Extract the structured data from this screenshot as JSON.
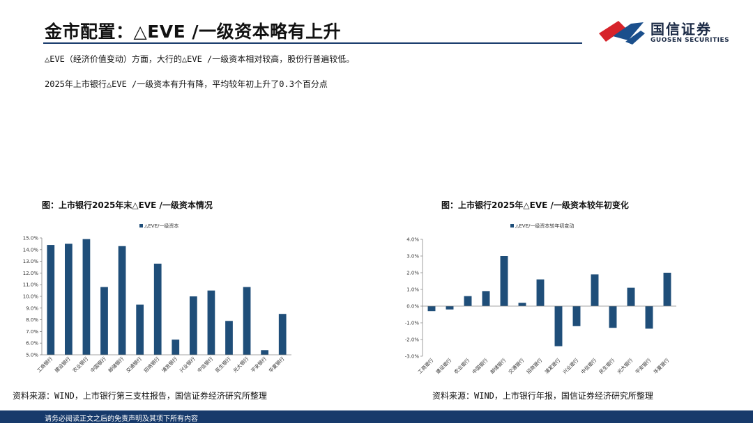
{
  "header": {
    "title": "金市配置：△EVE /一级资本略有上升",
    "logo_cn": "国信证券",
    "logo_en": "GUOSEN SECURITIES"
  },
  "bullets": [
    "△EVE（经济价值变动）方面，大行的△EVE /一级资本相对较高，股份行普遍较低。",
    "2025年上市银行△EVE /一级资本有升有降，平均较年初上升了0.3个百分点"
  ],
  "chart_data": [
    {
      "type": "bar",
      "title": "图：上市银行2025年末△EVE /一级资本情况",
      "legend": "△EVE/一级资本",
      "color": "#1f4e79",
      "categories": [
        "工商银行",
        "建设银行",
        "农业银行",
        "中国银行",
        "邮储银行",
        "交通银行",
        "招商银行",
        "浦发银行",
        "兴业银行",
        "中信银行",
        "民生银行",
        "光大银行",
        "平安银行",
        "华夏银行"
      ],
      "values": [
        14.4,
        14.5,
        14.9,
        10.8,
        14.3,
        9.3,
        12.8,
        6.3,
        10.0,
        10.5,
        7.9,
        10.8,
        5.4,
        8.5
      ],
      "ylim": [
        5.0,
        15.0
      ],
      "yticks": [
        "5.0%",
        "6.0%",
        "7.0%",
        "8.0%",
        "9.0%",
        "10.0%",
        "11.0%",
        "12.0%",
        "13.0%",
        "14.0%",
        "15.0%"
      ],
      "source": "资料来源：WIND，上市银行第三支柱报告，国信证券经济研究所整理"
    },
    {
      "type": "bar",
      "title": "图：上市银行2025年△EVE /一级资本较年初变化",
      "legend": "△EVE/一级资本较年初变动",
      "color": "#1f4e79",
      "categories": [
        "工商银行",
        "建设银行",
        "农业银行",
        "中国银行",
        "邮储银行",
        "交通银行",
        "招商银行",
        "浦发银行",
        "兴业银行",
        "中信银行",
        "民生银行",
        "光大银行",
        "平安银行",
        "华夏银行"
      ],
      "values": [
        -0.3,
        -0.2,
        0.6,
        0.9,
        3.0,
        0.2,
        1.6,
        -2.4,
        -1.2,
        1.9,
        -1.3,
        1.1,
        -1.35,
        2.0
      ],
      "ylim": [
        -3.0,
        4.0
      ],
      "yticks": [
        "-3.0%",
        "-2.0%",
        "-1.0%",
        "0.0%",
        "1.0%",
        "2.0%",
        "3.0%",
        "4.0%"
      ],
      "source": "资料来源：WIND，上市银行年报，国信证券经济研究所整理"
    }
  ],
  "footer": {
    "disclaimer": "请务必阅读正文之后的免责声明及其项下所有内容"
  }
}
